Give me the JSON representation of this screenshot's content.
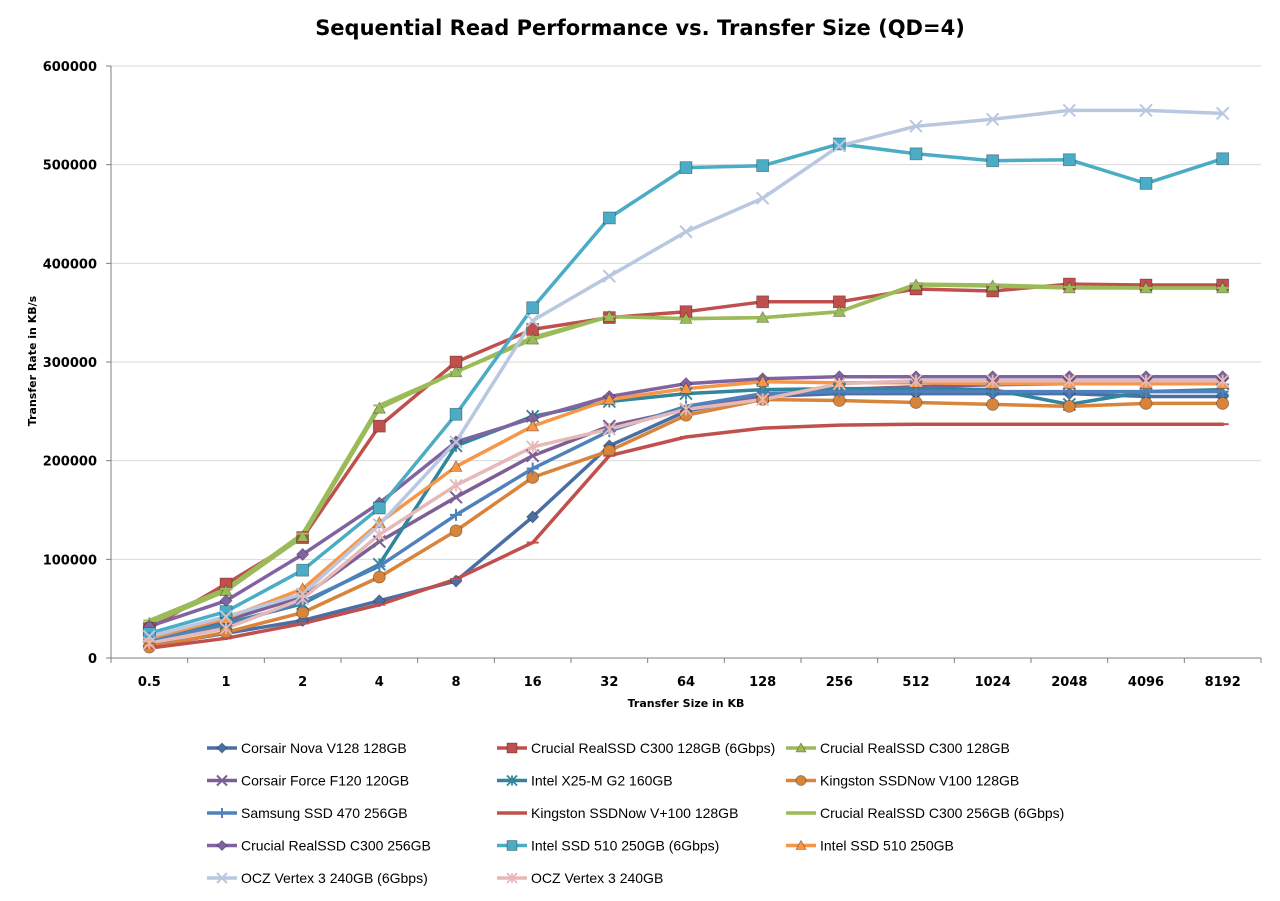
{
  "chart_data": {
    "type": "line",
    "title": "Sequential Read Performance vs. Transfer Size (QD=4)",
    "xlabel": "Transfer Size in KB",
    "ylabel": "Transfer Rate in KB/s",
    "categories": [
      "0.5",
      "1",
      "2",
      "4",
      "8",
      "16",
      "32",
      "64",
      "128",
      "256",
      "512",
      "1024",
      "2048",
      "4096",
      "8192"
    ],
    "ylim": [
      0,
      600000
    ],
    "yticks": [
      "0",
      "100000",
      "200000",
      "300000",
      "400000",
      "500000",
      "600000"
    ],
    "grid": "horizontal",
    "legend_position": "bottom",
    "series": [
      {
        "name": "Corsair Nova V128 128GB",
        "color": "#4a6fa5",
        "marker": "diamond",
        "values": [
          12000,
          25000,
          38000,
          58000,
          78000,
          143000,
          215000,
          250000,
          265000,
          268000,
          268000,
          268000,
          268000,
          265000,
          265000
        ]
      },
      {
        "name": "Crucial RealSSD C300 128GB (6Gbps)",
        "color": "#c0504d",
        "marker": "square",
        "values": [
          30000,
          75000,
          122000,
          235000,
          300000,
          333000,
          345000,
          351000,
          361000,
          361000,
          374000,
          372000,
          379000,
          378000,
          378000
        ]
      },
      {
        "name": "Crucial RealSSD C300 128GB",
        "color": "#9bbb59",
        "marker": "triangle",
        "values": [
          35000,
          68000,
          123000,
          253000,
          290000,
          323000,
          346000,
          344000,
          345000,
          351000,
          378000,
          377000,
          375000,
          375000,
          375000
        ]
      },
      {
        "name": "Corsair Force F120 120GB",
        "color": "#7b5f96",
        "marker": "x",
        "values": [
          22000,
          38000,
          62000,
          118000,
          163000,
          205000,
          235000,
          252000,
          265000,
          272000,
          275000,
          277000,
          278000,
          278000,
          278000
        ]
      },
      {
        "name": "Intel X25-M G2 160GB",
        "color": "#31859c",
        "marker": "asterisk",
        "values": [
          18000,
          35000,
          55000,
          95000,
          215000,
          245000,
          260000,
          268000,
          272000,
          273000,
          273000,
          272000,
          257000,
          270000,
          272000
        ]
      },
      {
        "name": "Kingston SSDNow V100 128GB",
        "color": "#d9843b",
        "marker": "circle",
        "values": [
          11000,
          26000,
          46000,
          82000,
          129000,
          183000,
          210000,
          246000,
          262000,
          261000,
          259000,
          257000,
          255000,
          258000,
          258000
        ]
      },
      {
        "name": "Samsung SSD 470 256GB",
        "color": "#4f81bd",
        "marker": "plus",
        "values": [
          18000,
          33000,
          57000,
          93000,
          145000,
          192000,
          230000,
          255000,
          268000,
          270000,
          270000,
          270000,
          270000,
          270000,
          270000
        ]
      },
      {
        "name": "Kingston SSDNow V+100 128GB",
        "color": "#c0504d",
        "marker": "dash",
        "values": [
          10000,
          20000,
          35000,
          54000,
          80000,
          117000,
          205000,
          224000,
          233000,
          236000,
          237000,
          237000,
          237000,
          237000,
          237000
        ]
      },
      {
        "name": "Crucial RealSSD C300 256GB (6Gbps)",
        "color": "#9bbb59",
        "marker": "dash",
        "values": [
          38000,
          70000,
          126000,
          256000,
          290000,
          325000,
          346000,
          344000,
          345000,
          351000,
          379000,
          378000,
          376000,
          375000,
          375000
        ]
      },
      {
        "name": "Crucial RealSSD C300 256GB",
        "color": "#8064a2",
        "marker": "diamond",
        "values": [
          32000,
          58000,
          105000,
          157000,
          219000,
          243000,
          265000,
          278000,
          283000,
          285000,
          285000,
          285000,
          285000,
          285000,
          285000
        ]
      },
      {
        "name": "Intel SSD 510 250GB (6Gbps)",
        "color": "#4bacc6",
        "marker": "square",
        "values": [
          25000,
          47000,
          89000,
          152000,
          247000,
          355000,
          446000,
          497000,
          499000,
          521000,
          511000,
          504000,
          505000,
          481000,
          506000
        ]
      },
      {
        "name": "Intel SSD 510 250GB",
        "color": "#f79646",
        "marker": "triangle",
        "values": [
          20000,
          40000,
          70000,
          137000,
          194000,
          235000,
          262000,
          273000,
          280000,
          279000,
          279000,
          278000,
          278000,
          278000,
          278000
        ]
      },
      {
        "name": "OCZ Vertex 3 240GB (6Gbps)",
        "color": "#b9c8e0",
        "marker": "x",
        "values": [
          22000,
          42000,
          65000,
          135000,
          219000,
          342000,
          387000,
          432000,
          466000,
          519000,
          539000,
          546000,
          555000,
          555000,
          552000
        ]
      },
      {
        "name": "OCZ Vertex 3 240GB",
        "color": "#e6b9b8",
        "marker": "asterisk",
        "values": [
          15000,
          30000,
          60000,
          125000,
          175000,
          214000,
          232000,
          252000,
          262000,
          278000,
          281000,
          281000,
          281000,
          281000,
          281000
        ]
      }
    ]
  }
}
